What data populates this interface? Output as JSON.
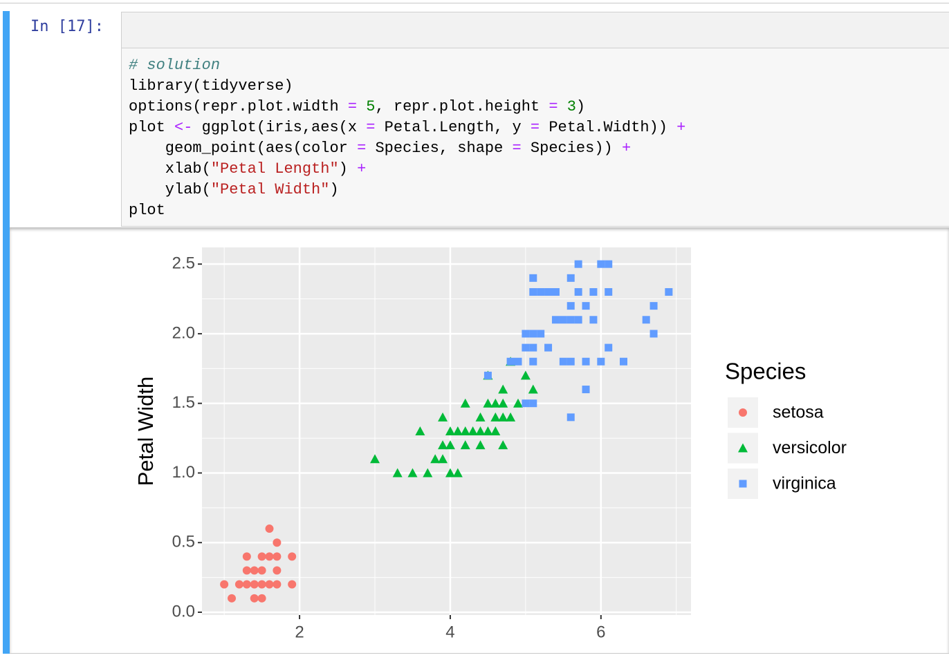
{
  "notebook": {
    "prompt": "In [17]:",
    "code": {
      "lines": [
        [
          "# solution"
        ],
        [
          "library(tidyverse)"
        ],
        [
          "options(repr.plot.width ",
          "= ",
          "5",
          ", repr.plot.height ",
          "= ",
          "3",
          ")"
        ],
        [
          "plot ",
          "<- ",
          "ggplot(iris,aes(x ",
          "= ",
          "Petal.Length, y ",
          "= ",
          "Petal.Width)) ",
          "+"
        ],
        [
          "    geom_point(aes(color ",
          "= ",
          "Species, shape ",
          "= ",
          "Species)) ",
          "+"
        ],
        [
          "    xlab(",
          "\"Petal Length\"",
          ") ",
          "+"
        ],
        [
          "    ylab(",
          "\"Petal Width\"",
          ")"
        ],
        [
          "plot"
        ]
      ]
    }
  },
  "chart_data": {
    "type": "scatter",
    "y_label": "Petal Width",
    "legend_title": "Species",
    "grid": true,
    "xlim": [
      0.705,
      7.195
    ],
    "ylim": [
      -0.02,
      2.62
    ],
    "xticks": [
      2,
      4,
      6
    ],
    "yticks": [
      {
        "value": 0,
        "label": "0.0"
      },
      0.5,
      {
        "value": 1,
        "label": "1.0"
      },
      1.5,
      {
        "value": 2,
        "label": "2.0"
      },
      2.5
    ],
    "series": [
      {
        "name": "setosa",
        "color": "#f8766d",
        "shape": "circle",
        "x": [
          1.0,
          1.1,
          1.2,
          1.3,
          1.3,
          1.3,
          1.4,
          1.4,
          1.4,
          1.5,
          1.5,
          1.5,
          1.5,
          1.6,
          1.6,
          1.6,
          1.7,
          1.7,
          1.7,
          1.7,
          1.9,
          1.9
        ],
        "values": [
          0.2,
          0.1,
          0.2,
          0.2,
          0.3,
          0.4,
          0.1,
          0.2,
          0.3,
          0.1,
          0.2,
          0.3,
          0.4,
          0.2,
          0.4,
          0.6,
          0.2,
          0.3,
          0.4,
          0.5,
          0.2,
          0.4
        ]
      },
      {
        "name": "versicolor",
        "color": "#00ba38",
        "shape": "triangle",
        "x": [
          3.0,
          3.3,
          3.5,
          3.6,
          3.7,
          3.8,
          3.9,
          3.9,
          3.9,
          4.0,
          4.0,
          4.0,
          4.1,
          4.1,
          4.2,
          4.2,
          4.2,
          4.3,
          4.4,
          4.4,
          4.4,
          4.5,
          4.5,
          4.5,
          4.6,
          4.6,
          4.6,
          4.7,
          4.7,
          4.7,
          4.7,
          4.8,
          4.8,
          4.9,
          5.0,
          5.1
        ],
        "values": [
          1.1,
          1.0,
          1.0,
          1.3,
          1.0,
          1.1,
          1.1,
          1.2,
          1.4,
          1.0,
          1.2,
          1.3,
          1.0,
          1.3,
          1.2,
          1.3,
          1.5,
          1.3,
          1.2,
          1.3,
          1.4,
          1.3,
          1.5,
          1.7,
          1.3,
          1.4,
          1.5,
          1.2,
          1.4,
          1.5,
          1.6,
          1.4,
          1.8,
          1.5,
          1.7,
          1.6
        ]
      },
      {
        "name": "virginica",
        "color": "#619cff",
        "shape": "square",
        "x": [
          4.5,
          4.8,
          4.9,
          5.0,
          5.0,
          5.0,
          5.1,
          5.1,
          5.1,
          5.1,
          5.1,
          5.1,
          5.2,
          5.2,
          5.3,
          5.3,
          5.4,
          5.4,
          5.5,
          5.5,
          5.6,
          5.6,
          5.6,
          5.6,
          5.6,
          5.7,
          5.7,
          5.7,
          5.8,
          5.8,
          5.8,
          5.9,
          5.9,
          6.0,
          6.0,
          6.1,
          6.1,
          6.1,
          6.3,
          6.6,
          6.7,
          6.7,
          6.9
        ],
        "values": [
          1.7,
          1.8,
          1.8,
          1.5,
          1.9,
          2.0,
          1.5,
          1.8,
          1.9,
          2.0,
          2.3,
          2.4,
          2.0,
          2.3,
          1.9,
          2.3,
          2.1,
          2.3,
          1.8,
          2.1,
          1.4,
          1.8,
          2.1,
          2.2,
          2.4,
          2.1,
          2.3,
          2.5,
          1.6,
          1.8,
          2.2,
          2.1,
          2.3,
          1.8,
          2.5,
          1.9,
          2.3,
          2.5,
          1.8,
          2.1,
          2.0,
          2.2,
          2.3
        ]
      }
    ]
  }
}
